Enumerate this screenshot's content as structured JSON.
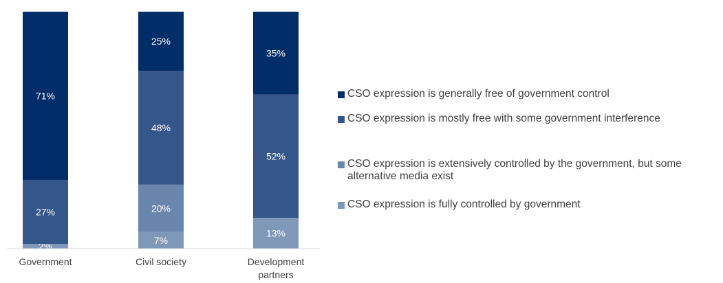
{
  "chart_data": {
    "type": "bar",
    "stacked": true,
    "categories": [
      "Government",
      "Civil society",
      "Development partners"
    ],
    "series": [
      {
        "name": "CSO expression is fully controlled by government",
        "color": "#7f98b8",
        "values": [
          2,
          7,
          13
        ]
      },
      {
        "name": "CSO expression is extensively controlled by the government, but some alternative media exist",
        "color": "#6a86ad",
        "values": [
          0,
          20,
          0
        ]
      },
      {
        "name": "CSO expression is mostly free with some government interference",
        "color": "#34568a",
        "values": [
          27,
          48,
          52
        ]
      },
      {
        "name": "CSO expression is generally free of government control",
        "color": "#012d69",
        "values": [
          71,
          25,
          35
        ]
      }
    ],
    "value_suffix": "%",
    "ylim": [
      0,
      100
    ],
    "grid": false,
    "legend_position": "right"
  }
}
